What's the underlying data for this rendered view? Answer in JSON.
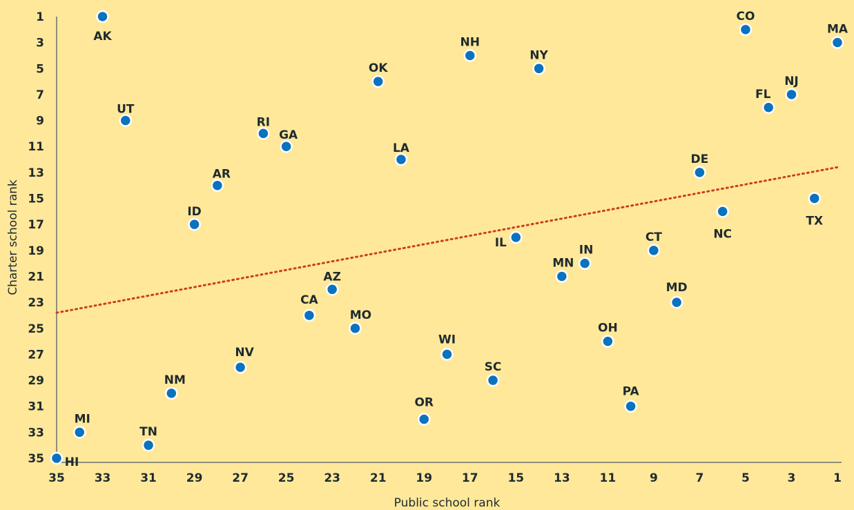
{
  "chart_data": {
    "type": "scatter",
    "title": "",
    "xlabel": "Public school rank",
    "ylabel": "Charter school rank",
    "xlim": [
      35,
      1
    ],
    "ylim": [
      1,
      35
    ],
    "x_reversed": true,
    "y_reversed": true,
    "x_ticks": [
      "35",
      "33",
      "31",
      "29",
      "27",
      "25",
      "23",
      "21",
      "19",
      "17",
      "15",
      "13",
      "11",
      "9",
      "7",
      "5",
      "3",
      "1"
    ],
    "y_ticks": [
      "1",
      "3",
      "5",
      "7",
      "9",
      "11",
      "13",
      "15",
      "17",
      "19",
      "21",
      "23",
      "25",
      "27",
      "29",
      "31",
      "33",
      "35"
    ],
    "grid": false,
    "legend": "none",
    "point_color": "#0b72be",
    "trendline": {
      "style": "dotted",
      "color": "#cc3b1f",
      "x": [
        35,
        1
      ],
      "y": [
        23.8,
        12.6
      ]
    },
    "points": [
      {
        "label": "AK",
        "x": 33,
        "y": 1
      },
      {
        "label": "CO",
        "x": 5,
        "y": 2
      },
      {
        "label": "MA",
        "x": 1,
        "y": 3
      },
      {
        "label": "NH",
        "x": 17,
        "y": 4
      },
      {
        "label": "NY",
        "x": 14,
        "y": 5
      },
      {
        "label": "OK",
        "x": 21,
        "y": 6
      },
      {
        "label": "NJ",
        "x": 3,
        "y": 7
      },
      {
        "label": "FL",
        "x": 4,
        "y": 8
      },
      {
        "label": "UT",
        "x": 32,
        "y": 9
      },
      {
        "label": "RI",
        "x": 26,
        "y": 10
      },
      {
        "label": "GA",
        "x": 25,
        "y": 11
      },
      {
        "label": "LA",
        "x": 20,
        "y": 12
      },
      {
        "label": "DE",
        "x": 7,
        "y": 13
      },
      {
        "label": "AR",
        "x": 28,
        "y": 14
      },
      {
        "label": "TX",
        "x": 2,
        "y": 15
      },
      {
        "label": "NC",
        "x": 6,
        "y": 16
      },
      {
        "label": "ID",
        "x": 29,
        "y": 17
      },
      {
        "label": "IL",
        "x": 15,
        "y": 18
      },
      {
        "label": "CT",
        "x": 9,
        "y": 19
      },
      {
        "label": "IN",
        "x": 12,
        "y": 20
      },
      {
        "label": "MN",
        "x": 13,
        "y": 21
      },
      {
        "label": "AZ",
        "x": 23,
        "y": 22
      },
      {
        "label": "MD",
        "x": 8,
        "y": 23
      },
      {
        "label": "CA",
        "x": 24,
        "y": 24
      },
      {
        "label": "MO",
        "x": 22,
        "y": 25
      },
      {
        "label": "OH",
        "x": 11,
        "y": 26
      },
      {
        "label": "WI",
        "x": 18,
        "y": 27
      },
      {
        "label": "NV",
        "x": 27,
        "y": 28
      },
      {
        "label": "SC",
        "x": 16,
        "y": 29
      },
      {
        "label": "NM",
        "x": 30,
        "y": 30
      },
      {
        "label": "PA",
        "x": 10,
        "y": 31
      },
      {
        "label": "OR",
        "x": 19,
        "y": 32
      },
      {
        "label": "MI",
        "x": 34,
        "y": 33
      },
      {
        "label": "TN",
        "x": 31,
        "y": 34
      },
      {
        "label": "HI",
        "x": 35,
        "y": 35
      }
    ]
  }
}
